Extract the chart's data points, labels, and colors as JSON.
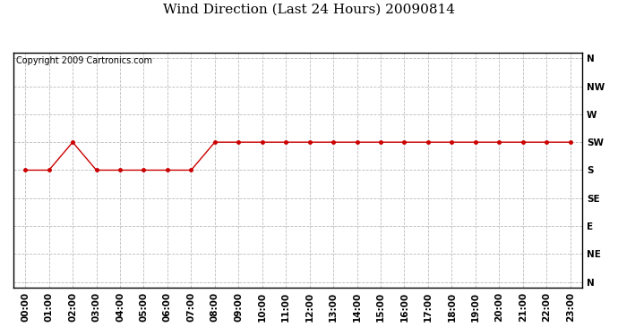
{
  "title": "Wind Direction (Last 24 Hours) 20090814",
  "copyright": "Copyright 2009 Cartronics.com",
  "x_labels": [
    "00:00",
    "01:00",
    "02:00",
    "03:00",
    "04:00",
    "05:00",
    "06:00",
    "07:00",
    "08:00",
    "09:00",
    "10:00",
    "11:00",
    "12:00",
    "13:00",
    "14:00",
    "15:00",
    "16:00",
    "17:00",
    "18:00",
    "19:00",
    "20:00",
    "21:00",
    "22:00",
    "23:00"
  ],
  "y_labels": [
    "N",
    "NW",
    "W",
    "SW",
    "S",
    "SE",
    "E",
    "NE",
    "N"
  ],
  "y_values": [
    8,
    7,
    6,
    5,
    4,
    3,
    2,
    1,
    0
  ],
  "wind_data_labels": [
    "S",
    "S",
    "SW",
    "S",
    "S",
    "S",
    "S",
    "S",
    "SW",
    "SW",
    "SW",
    "SW",
    "SW",
    "SW",
    "SW",
    "SW",
    "SW",
    "SW",
    "SW",
    "SW",
    "SW",
    "SW",
    "SW",
    "SW"
  ],
  "wind_data": [
    4,
    4,
    5,
    4,
    4,
    4,
    4,
    4,
    5,
    5,
    5,
    5,
    5,
    5,
    5,
    5,
    5,
    5,
    5,
    5,
    5,
    5,
    5,
    5
  ],
  "line_color": "#cc0000",
  "marker": "o",
  "marker_size": 3,
  "bg_color": "#ffffff",
  "plot_bg_color": "#ffffff",
  "grid_color": "#bbbbbb",
  "title_fontsize": 11,
  "tick_fontsize": 7.5,
  "copyright_fontsize": 7,
  "border_color": "#000000"
}
